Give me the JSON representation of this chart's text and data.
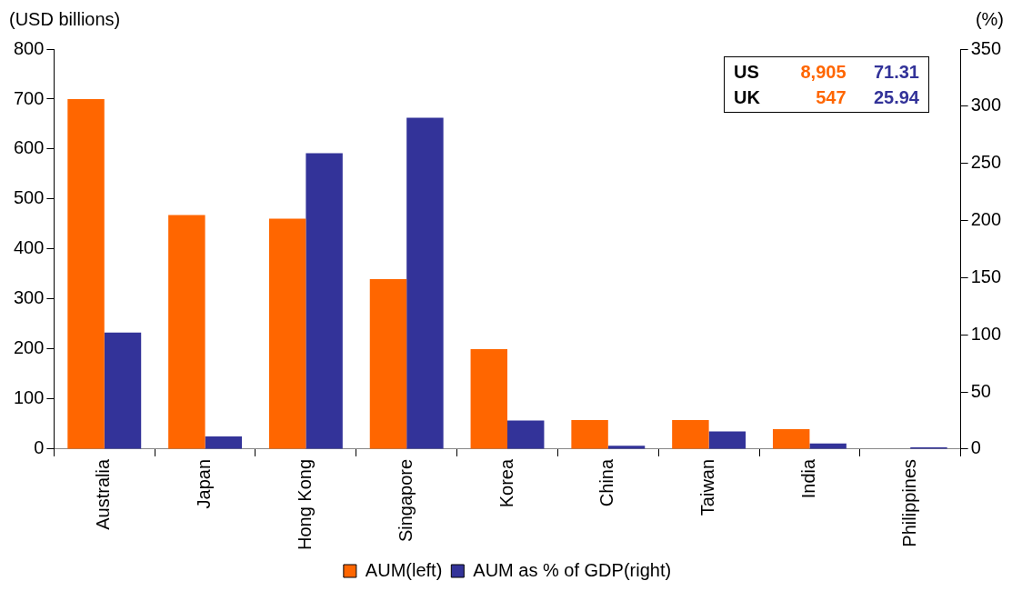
{
  "chart_data": {
    "type": "bar",
    "ylabel": "(USD billions)",
    "y2label": "(%)",
    "categories": [
      "Australia",
      "Japan",
      "Hong Kong",
      "Singapore",
      "Korea",
      "China",
      "Taiwan",
      "India",
      "Philippines"
    ],
    "series": [
      {
        "name": "AUM(left)",
        "color": "#ff6600",
        "values": [
          700,
          468,
          461,
          340,
          200,
          58,
          58,
          40,
          null
        ]
      },
      {
        "name": "AUM as % of GDP(right)",
        "color": "#333399",
        "axis": "y2",
        "values": [
          102,
          11,
          259,
          290,
          25,
          3,
          15.5,
          5,
          1.5
        ]
      }
    ],
    "ylim": [
      0,
      800
    ],
    "yticks": [
      0,
      100,
      200,
      300,
      400,
      500,
      600,
      700,
      800
    ],
    "y2lim": [
      0,
      350
    ],
    "y2ticks": [
      0,
      50,
      100,
      150,
      200,
      250,
      300,
      350
    ],
    "annotations": [
      "US",
      "8,905",
      "71.31",
      "UK",
      "547",
      "25.94"
    ],
    "grid": false,
    "legend": "bottom"
  }
}
